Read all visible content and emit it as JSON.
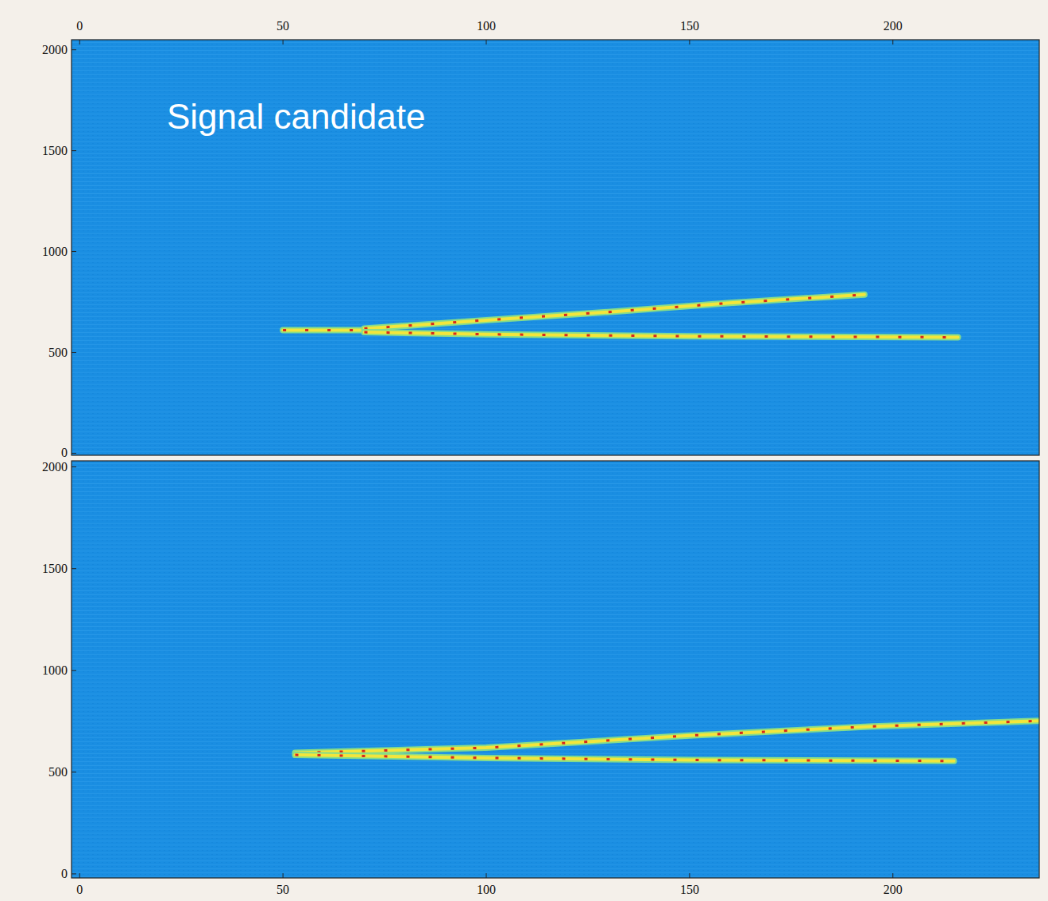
{
  "chart_data": [
    {
      "type": "line",
      "annotation": "Signal candidate",
      "xlim": [
        -2,
        236
      ],
      "ylim": [
        -10,
        2050
      ],
      "xticks": [
        0,
        50,
        100,
        150,
        200
      ],
      "yticks": [
        0,
        500,
        1000,
        1500,
        2000
      ],
      "grid": false,
      "series": [
        {
          "color": "#f2e63c",
          "line_style": "solid",
          "x": [
            50,
            70
          ],
          "values": [
            610,
            610
          ]
        },
        {
          "color": "#f2e63c",
          "line_style": "solid",
          "x": [
            70,
            100,
            130,
            160,
            193
          ],
          "values": [
            618,
            660,
            700,
            745,
            787
          ]
        },
        {
          "color": "#f2e63c",
          "line_style": "solid",
          "x": [
            70,
            100,
            150,
            216
          ],
          "values": [
            600,
            590,
            580,
            575
          ]
        }
      ]
    },
    {
      "type": "line",
      "xlim": [
        -2,
        236
      ],
      "ylim": [
        -20,
        2030
      ],
      "xticks": [
        0,
        50,
        100,
        150,
        200
      ],
      "yticks": [
        0,
        500,
        1000,
        1500,
        2000
      ],
      "grid": false,
      "series": [
        {
          "color": "#f2e63c",
          "line_style": "solid",
          "x": [
            53,
            100,
            150,
            195,
            236
          ],
          "values": [
            595,
            620,
            680,
            725,
            752
          ]
        },
        {
          "color": "#f2e63c",
          "line_style": "solid",
          "x": [
            53,
            100,
            150,
            215
          ],
          "values": [
            585,
            570,
            560,
            555
          ]
        }
      ]
    }
  ]
}
